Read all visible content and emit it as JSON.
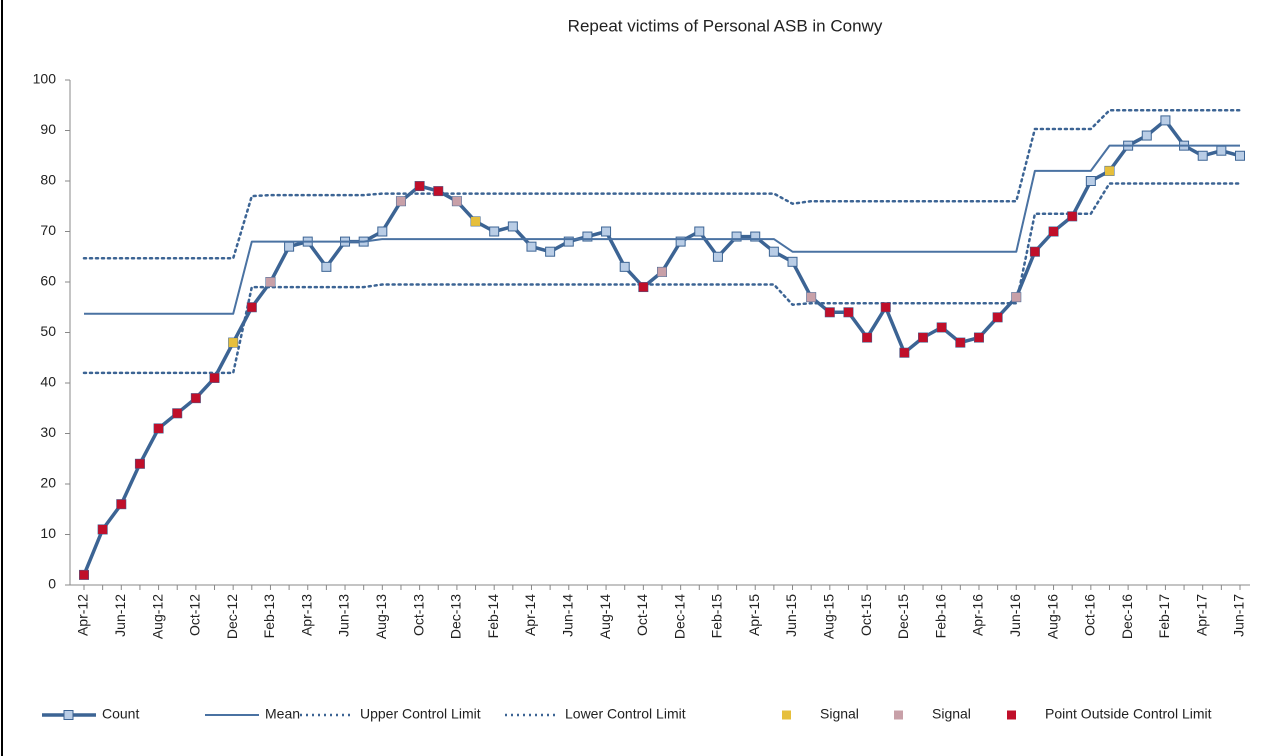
{
  "chart_data": {
    "type": "line",
    "title": "Repeat victims of Personal ASB in Conwy",
    "categories": [
      "Apr-12",
      null,
      "Jun-12",
      null,
      "Aug-12",
      null,
      "Oct-12",
      null,
      "Dec-12",
      null,
      "Feb-13",
      null,
      "Apr-13",
      null,
      "Jun-13",
      null,
      "Aug-13",
      null,
      "Oct-13",
      null,
      "Dec-13",
      null,
      "Feb-14",
      null,
      "Apr-14",
      null,
      "Jun-14",
      null,
      "Aug-14",
      null,
      "Oct-14",
      null,
      "Dec-14",
      null,
      "Feb-15",
      null,
      "Apr-15",
      null,
      "Jun-15",
      null,
      "Aug-15",
      null,
      "Oct-15",
      null,
      "Dec-15",
      null,
      "Feb-16",
      null,
      "Apr-16",
      null,
      "Jun-16",
      null,
      "Aug-16",
      null,
      "Oct-16",
      null,
      "Dec-16",
      null,
      "Feb-17",
      null,
      "Apr-17",
      null,
      "Jun-17"
    ],
    "ylim": [
      0,
      100
    ],
    "yticks": [
      0,
      10,
      20,
      30,
      40,
      50,
      60,
      70,
      80,
      90,
      100
    ],
    "legend": "bottom",
    "series": [
      {
        "name": "Count",
        "color": "#3c6494",
        "line_style": "solid",
        "marker": "square",
        "marker_fill": "#b9cde6",
        "values": [
          2,
          11,
          16,
          24,
          31,
          34,
          37,
          41,
          48,
          55,
          60,
          67,
          68,
          63,
          68,
          68,
          70,
          76,
          79,
          78,
          76,
          72,
          70,
          71,
          67,
          66,
          68,
          69,
          70,
          63,
          59,
          62,
          68,
          70,
          65,
          69,
          69,
          66,
          64,
          57,
          54,
          54,
          49,
          55,
          46,
          49,
          51,
          48,
          49,
          53,
          57,
          66,
          70,
          73,
          80,
          82,
          87,
          89,
          92,
          87,
          85,
          86,
          85
        ]
      },
      {
        "name": "Mean",
        "color": "#4a72a2",
        "line_style": "thin",
        "values": [
          53.7,
          53.7,
          53.7,
          53.7,
          53.7,
          53.7,
          53.7,
          53.7,
          53.7,
          68,
          68,
          68,
          68,
          68,
          68,
          68,
          68.5,
          68.5,
          68.5,
          68.5,
          68.5,
          68.5,
          68.5,
          68.5,
          68.5,
          68.5,
          68.5,
          68.5,
          68.5,
          68.5,
          68.5,
          68.5,
          68.5,
          68.5,
          68.5,
          68.5,
          68.5,
          68.5,
          66,
          66,
          66,
          66,
          66,
          66,
          66,
          66,
          66,
          66,
          66,
          66,
          66,
          82,
          82,
          82,
          82,
          87,
          87,
          87,
          87,
          87,
          87,
          87,
          87
        ]
      },
      {
        "name": "Upper Control Limit",
        "color": "#3c6494",
        "line_style": "dotted",
        "values": [
          64.7,
          64.7,
          64.7,
          64.7,
          64.7,
          64.7,
          64.7,
          64.7,
          64.7,
          77,
          77.2,
          77.2,
          77.2,
          77.2,
          77.2,
          77.2,
          77.5,
          77.5,
          77.5,
          77.5,
          77.5,
          77.5,
          77.5,
          77.5,
          77.5,
          77.5,
          77.5,
          77.5,
          77.5,
          77.5,
          77.5,
          77.5,
          77.5,
          77.5,
          77.5,
          77.5,
          77.5,
          77.5,
          75.5,
          76,
          76,
          76,
          76,
          76,
          76,
          76,
          76,
          76,
          76,
          76,
          76,
          90.3,
          90.3,
          90.3,
          90.3,
          94,
          94,
          94,
          94,
          94,
          94,
          94,
          94
        ]
      },
      {
        "name": "Lower Control Limit",
        "color": "#3c6494",
        "line_style": "dotted",
        "values": [
          42,
          42,
          42,
          42,
          42,
          42,
          42,
          42,
          42,
          59,
          59,
          59,
          59,
          59,
          59,
          59,
          59.5,
          59.5,
          59.5,
          59.5,
          59.5,
          59.5,
          59.5,
          59.5,
          59.5,
          59.5,
          59.5,
          59.5,
          59.5,
          59.5,
          59.5,
          59.5,
          59.5,
          59.5,
          59.5,
          59.5,
          59.5,
          59.5,
          55.5,
          55.8,
          55.8,
          55.8,
          55.8,
          55.8,
          55.8,
          55.8,
          55.8,
          55.8,
          55.8,
          55.8,
          55.8,
          73.5,
          73.5,
          73.5,
          73.5,
          79.5,
          79.5,
          79.5,
          79.5,
          79.5,
          79.5,
          79.5,
          79.5
        ]
      },
      {
        "name": "Signal",
        "color": "#e6bf3c",
        "line_style": "none",
        "marker": "square",
        "values": [
          null,
          null,
          null,
          null,
          null,
          null,
          null,
          null,
          48,
          null,
          null,
          null,
          null,
          null,
          null,
          null,
          null,
          null,
          null,
          null,
          null,
          72,
          null,
          null,
          null,
          null,
          null,
          null,
          null,
          null,
          null,
          null,
          null,
          null,
          null,
          null,
          null,
          null,
          null,
          null,
          null,
          null,
          null,
          null,
          null,
          null,
          null,
          null,
          null,
          null,
          null,
          null,
          null,
          null,
          null,
          82,
          null,
          null,
          null,
          null,
          null,
          null,
          null
        ]
      },
      {
        "name": "Signal",
        "color": "#c8a0a8",
        "line_style": "none",
        "marker": "square",
        "values": [
          null,
          null,
          null,
          null,
          null,
          null,
          null,
          null,
          null,
          null,
          60,
          null,
          null,
          null,
          null,
          null,
          null,
          76,
          null,
          null,
          76,
          null,
          null,
          null,
          null,
          null,
          null,
          null,
          null,
          null,
          null,
          62,
          null,
          null,
          null,
          null,
          null,
          null,
          null,
          57,
          null,
          null,
          null,
          null,
          null,
          null,
          null,
          null,
          null,
          null,
          57,
          null,
          null,
          null,
          null,
          null,
          null,
          null,
          null,
          null,
          null,
          null,
          null
        ]
      },
      {
        "name": "Point Outside Control Limit",
        "color": "#c00f2a",
        "line_style": "none",
        "marker": "square",
        "values": [
          2,
          11,
          16,
          24,
          31,
          34,
          37,
          41,
          null,
          55,
          null,
          null,
          null,
          null,
          null,
          null,
          null,
          null,
          79,
          78,
          null,
          null,
          null,
          null,
          null,
          null,
          null,
          null,
          null,
          null,
          59,
          null,
          null,
          null,
          null,
          null,
          null,
          null,
          null,
          null,
          54,
          54,
          49,
          55,
          46,
          49,
          51,
          48,
          49,
          53,
          null,
          66,
          70,
          73,
          null,
          null,
          null,
          null,
          null,
          null,
          null,
          null,
          null
        ]
      }
    ]
  }
}
